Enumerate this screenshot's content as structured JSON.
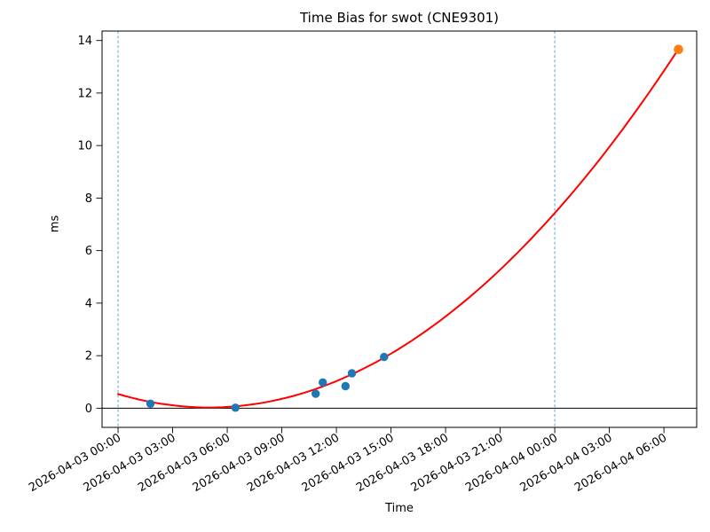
{
  "chart_data": {
    "type": "scatter",
    "title": "Time Bias for swot (CNE9301)",
    "xlabel": "Time",
    "ylabel": "ms",
    "grid": false,
    "legend": "none",
    "x_axis": {
      "start_time": "2026-04-03 00:00",
      "tick_interval_hours": 3,
      "tick_labels": [
        "2026-04-03 00:00",
        "2026-04-03 03:00",
        "2026-04-03 06:00",
        "2026-04-03 09:00",
        "2026-04-03 12:00",
        "2026-04-03 15:00",
        "2026-04-03 18:00",
        "2026-04-03 21:00",
        "2026-04-04 00:00",
        "2026-04-04 03:00",
        "2026-04-04 06:00"
      ],
      "tick_hours": [
        0,
        3,
        6,
        9,
        12,
        15,
        18,
        21,
        24,
        27,
        30
      ],
      "xlim_hours": [
        -0.88,
        31.8
      ],
      "label_rotation_deg": 30
    },
    "y_axis": {
      "ticks": [
        0,
        2,
        4,
        6,
        8,
        10,
        12,
        14
      ],
      "ylim": [
        -0.73,
        14.36
      ]
    },
    "series": [
      {
        "name": "observed-bias-points",
        "type": "scatter",
        "color": "#1f77b4",
        "marker_radius": 4.7,
        "points": [
          {
            "time": "2026-04-03 01:47",
            "hours": 1.78,
            "ms": 0.17
          },
          {
            "time": "2026-04-03 06:27",
            "hours": 6.45,
            "ms": 0.02
          },
          {
            "time": "2026-04-03 10:52",
            "hours": 10.86,
            "ms": 0.55
          },
          {
            "time": "2026-04-03 11:15",
            "hours": 11.25,
            "ms": 0.98
          },
          {
            "time": "2026-04-03 12:30",
            "hours": 12.5,
            "ms": 0.84
          },
          {
            "time": "2026-04-03 12:51",
            "hours": 12.85,
            "ms": 1.33
          },
          {
            "time": "2026-04-03 14:37",
            "hours": 14.62,
            "ms": 1.95
          }
        ]
      },
      {
        "name": "predicted-latest-point",
        "type": "scatter",
        "color": "#ff7f0e",
        "marker_radius": 5.3,
        "points": [
          {
            "time": "2026-04-04 06:48",
            "hours": 30.8,
            "ms": 13.66
          }
        ]
      },
      {
        "name": "quadratic-fit-curve",
        "type": "line",
        "color": "#ff0000",
        "line_width": 2,
        "quadratic_ms_per_hour": {
          "a": 0.0205,
          "b": -0.205,
          "c": 0.54
        },
        "t_range_hours": [
          0,
          30.8
        ]
      }
    ],
    "vlines": [
      {
        "time": "2026-04-03 00:00",
        "hours": 0,
        "color": "#5ba3d4",
        "style": "dashed"
      },
      {
        "time": "2026-04-04 00:00",
        "hours": 24,
        "color": "#5ba3d4",
        "style": "dashed"
      }
    ],
    "hlines": [
      {
        "ms": 0,
        "color": "#000000",
        "style": "solid"
      }
    ]
  }
}
